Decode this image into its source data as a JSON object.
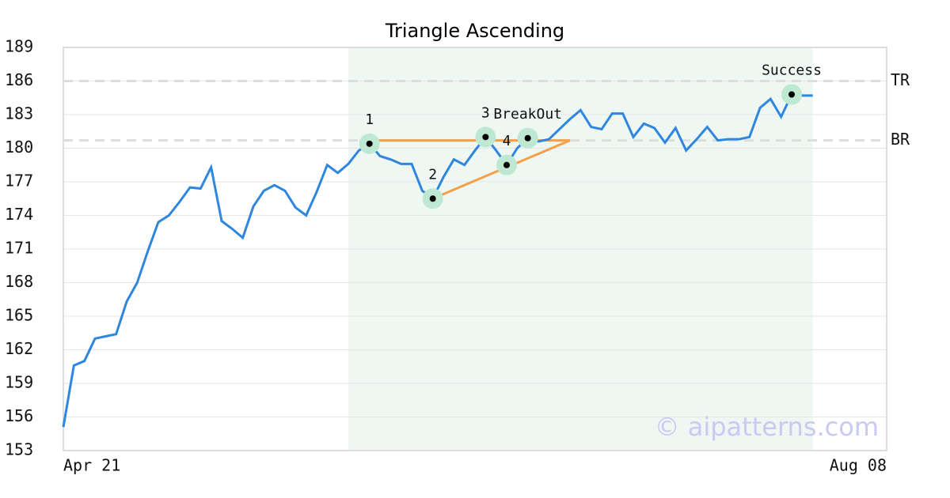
{
  "chart_data": {
    "type": "line",
    "title": "Triangle Ascending",
    "categories": [
      "Apr 21",
      null,
      null,
      null,
      null,
      null,
      null,
      null,
      null,
      null,
      null,
      null,
      null,
      null,
      null,
      null,
      null,
      null,
      null,
      null,
      null,
      null,
      null,
      null,
      null,
      null,
      null,
      null,
      null,
      null,
      null,
      null,
      null,
      null,
      null,
      null,
      null,
      null,
      null,
      null,
      null,
      null,
      null,
      null,
      null,
      null,
      null,
      null,
      null,
      null,
      null,
      null,
      null,
      null,
      null,
      null,
      null,
      null,
      null,
      null,
      null,
      null,
      null,
      null,
      null,
      null,
      null,
      null,
      null,
      null,
      null,
      null,
      null,
      null,
      null,
      null,
      null,
      null,
      "Aug 08"
    ],
    "series": [
      {
        "color": "#2e86de",
        "values": [
          155.1,
          160.6,
          161.0,
          163.0,
          163.2,
          163.4,
          166.3,
          168.0,
          170.8,
          173.4,
          174.0,
          175.2,
          176.5,
          176.4,
          178.3,
          173.5,
          172.8,
          172.0,
          174.8,
          176.2,
          176.7,
          176.2,
          174.7,
          174.0,
          176.1,
          178.5,
          177.8,
          178.6,
          179.8,
          180.4,
          179.3,
          179.0,
          178.6,
          178.6,
          176.2,
          175.5,
          177.4,
          179.0,
          178.5,
          179.8,
          181.0,
          179.8,
          178.5,
          180.0,
          180.9,
          180.6,
          180.8,
          181.7,
          182.6,
          183.4,
          181.9,
          181.7,
          183.1,
          183.1,
          181.0,
          182.2,
          181.8,
          180.5,
          181.8,
          179.8,
          180.8,
          181.9,
          180.7,
          180.8,
          180.8,
          181.0,
          183.6,
          184.4,
          182.8,
          184.8,
          184.7,
          184.7,
          null,
          null,
          null,
          null,
          null,
          null,
          null
        ]
      }
    ],
    "ylim": [
      153,
      189
    ],
    "yticks": [
      153,
      156,
      159,
      162,
      165,
      168,
      171,
      174,
      177,
      180,
      183,
      186,
      189
    ],
    "grid": true,
    "shade": {
      "from": 27,
      "to": 71,
      "color": "#eef7f2"
    },
    "levels": [
      {
        "label": "TR",
        "value": 186.0
      },
      {
        "label": "BR",
        "value": 180.7
      }
    ],
    "trendlines": [
      {
        "color": "#f4a04a",
        "x": [
          29,
          48
        ],
        "y": [
          180.7,
          180.7
        ]
      },
      {
        "color": "#f4a04a",
        "x": [
          35,
          48
        ],
        "y": [
          175.5,
          180.7
        ]
      }
    ],
    "markers": [
      {
        "label": "1",
        "index": 29
      },
      {
        "label": "2",
        "index": 35
      },
      {
        "label": "3",
        "index": 40
      },
      {
        "label": "4",
        "index": 42
      },
      {
        "label": "BreakOut",
        "index": 44
      },
      {
        "label": "Success",
        "index": 69
      }
    ],
    "watermark": "© aipatterns.com"
  }
}
